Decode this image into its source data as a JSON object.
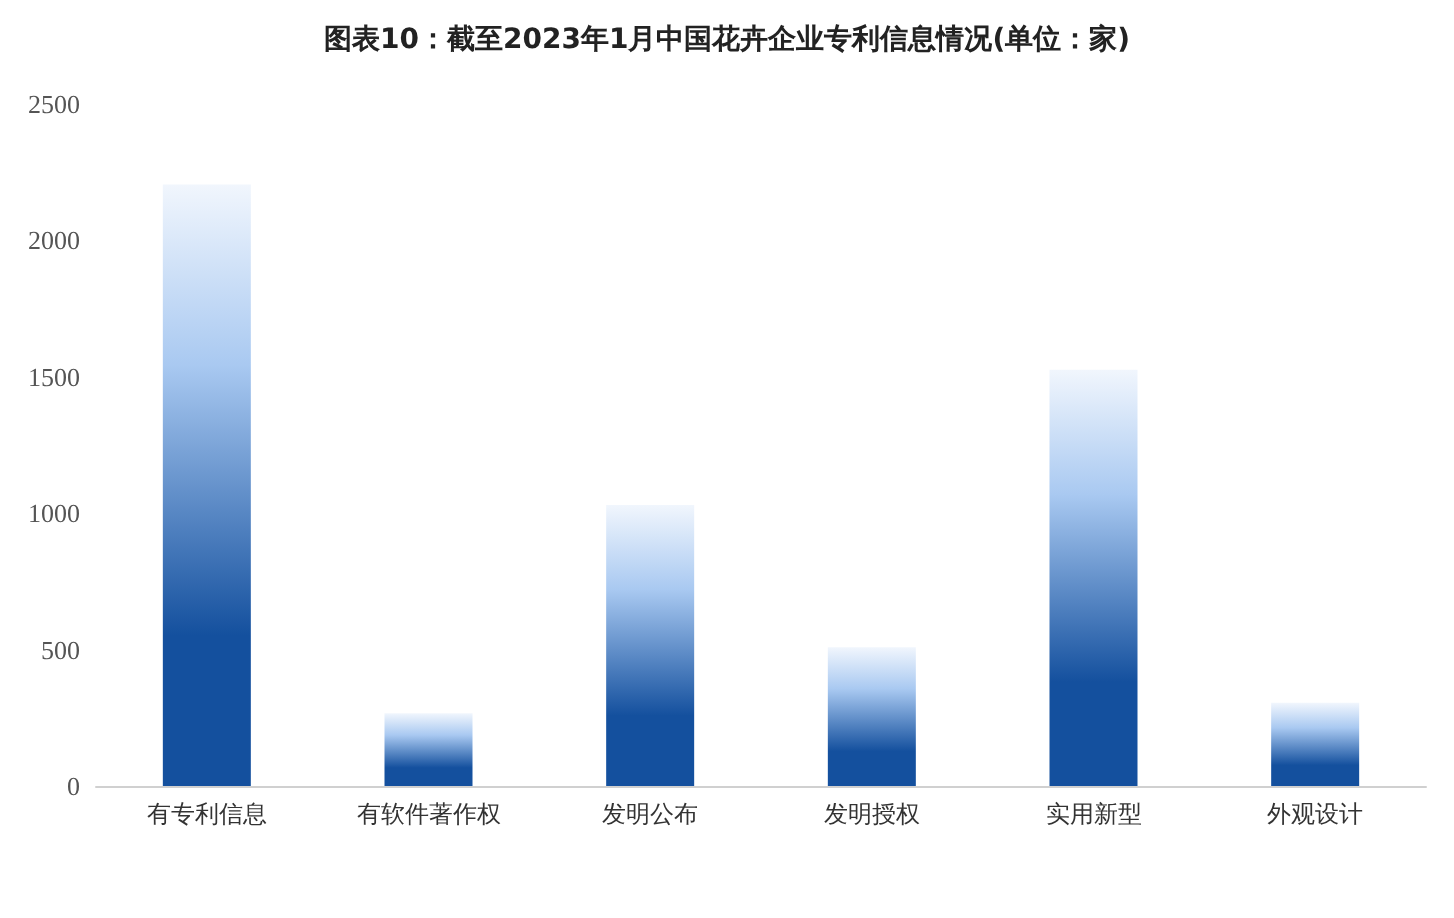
{
  "chart_data": {
    "type": "bar",
    "title": "图表10：截至2023年1月中国花卉企业专利信息情况(单位：家)",
    "categories": [
      "有专利信息",
      "有软件著作权",
      "发明公布",
      "发明授权",
      "实用新型",
      "外观设计"
    ],
    "values": [
      2205,
      267,
      1030,
      509,
      1526,
      305
    ],
    "color": "#14509e",
    "ylim": [
      0,
      2500
    ],
    "yticks": [
      0,
      500,
      1000,
      1500,
      2000,
      2500
    ],
    "grid": false
  }
}
